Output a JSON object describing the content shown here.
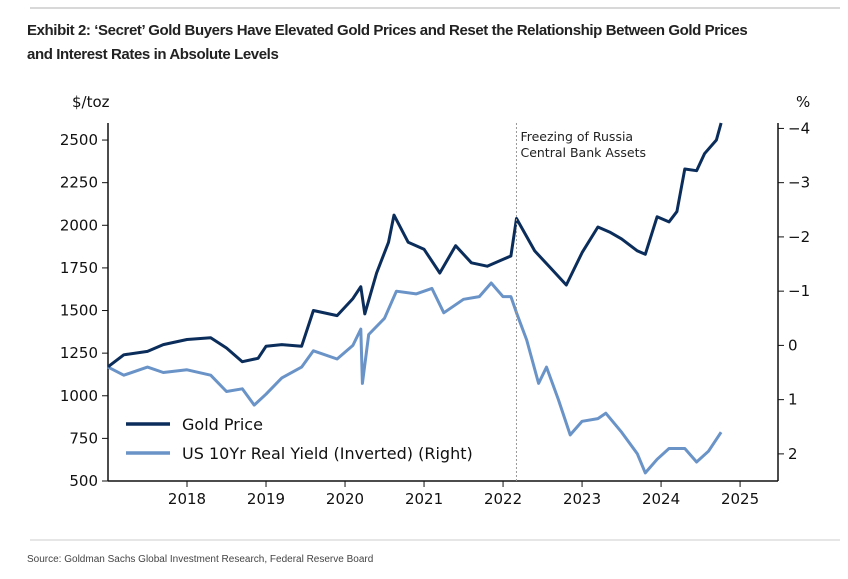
{
  "chart_data": {
    "type": "line",
    "title": "Exhibit 2: ‘Secret’ Gold Buyers Have Elevated Gold Prices and Reset the Relationship Between Gold Prices",
    "title_line2": "and Interest Rates in Absolute Levels",
    "ylabel_left": "$/toz",
    "ylabel_right": "%",
    "xlim": [
      2017.0,
      2025.48
    ],
    "ylim_left": [
      500,
      2600
    ],
    "ylim_right": [
      2.5,
      -4.1
    ],
    "right_axis_inverted": true,
    "x_ticks": [
      "2018",
      "2019",
      "2020",
      "2021",
      "2022",
      "2023",
      "2024",
      "2025"
    ],
    "y_ticks_left": [
      "500",
      "750",
      "1000",
      "1250",
      "1500",
      "1750",
      "2000",
      "2250",
      "2500"
    ],
    "y_ticks_right": [
      "−4",
      "−3",
      "−2",
      "−1",
      "0",
      "1",
      "2"
    ],
    "grid": false,
    "legend_position": "bottom-left",
    "annotation": {
      "x": 2022.17,
      "line1": "Freezing of Russia",
      "line2": "Central Bank Assets"
    },
    "series": [
      {
        "name": "Gold Price",
        "axis": "left",
        "color": "#0b2d5b",
        "x": [
          2017.0,
          2017.2,
          2017.5,
          2017.7,
          2018.0,
          2018.3,
          2018.5,
          2018.7,
          2018.9,
          2019.0,
          2019.2,
          2019.45,
          2019.6,
          2019.9,
          2020.1,
          2020.2,
          2020.25,
          2020.4,
          2020.55,
          2020.62,
          2020.8,
          2021.0,
          2021.2,
          2021.4,
          2021.6,
          2021.8,
          2022.0,
          2022.1,
          2022.17,
          2022.4,
          2022.6,
          2022.8,
          2023.0,
          2023.2,
          2023.35,
          2023.5,
          2023.7,
          2023.8,
          2023.95,
          2024.1,
          2024.2,
          2024.3,
          2024.45,
          2024.55,
          2024.7,
          2024.76
        ],
        "values": [
          1170,
          1240,
          1260,
          1300,
          1330,
          1340,
          1280,
          1200,
          1220,
          1290,
          1300,
          1290,
          1500,
          1470,
          1570,
          1640,
          1480,
          1720,
          1900,
          2060,
          1900,
          1860,
          1720,
          1880,
          1780,
          1760,
          1800,
          1820,
          2040,
          1850,
          1750,
          1650,
          1840,
          1990,
          1960,
          1920,
          1850,
          1830,
          2050,
          2020,
          2080,
          2330,
          2320,
          2420,
          2500,
          2600
        ]
      },
      {
        "name": "US 10Yr Real Yield (Inverted) (Right)",
        "axis": "right",
        "color": "#6a93c8",
        "x": [
          2017.0,
          2017.2,
          2017.5,
          2017.7,
          2018.0,
          2018.3,
          2018.5,
          2018.7,
          2018.85,
          2019.0,
          2019.2,
          2019.45,
          2019.6,
          2019.9,
          2020.1,
          2020.2,
          2020.22,
          2020.3,
          2020.5,
          2020.65,
          2020.9,
          2021.1,
          2021.25,
          2021.5,
          2021.7,
          2021.85,
          2022.0,
          2022.1,
          2022.17,
          2022.3,
          2022.45,
          2022.55,
          2022.7,
          2022.85,
          2023.0,
          2023.2,
          2023.3,
          2023.5,
          2023.7,
          2023.8,
          2023.95,
          2024.1,
          2024.3,
          2024.45,
          2024.6,
          2024.76
        ],
        "values": [
          0.4,
          0.55,
          0.4,
          0.5,
          0.45,
          0.55,
          0.85,
          0.8,
          1.1,
          0.9,
          0.6,
          0.4,
          0.1,
          0.25,
          0.0,
          -0.3,
          0.7,
          -0.2,
          -0.5,
          -1.0,
          -0.95,
          -1.05,
          -0.6,
          -0.85,
          -0.9,
          -1.15,
          -0.9,
          -0.9,
          -0.6,
          -0.1,
          0.7,
          0.4,
          1.0,
          1.65,
          1.4,
          1.35,
          1.25,
          1.6,
          2.0,
          2.35,
          2.1,
          1.9,
          1.9,
          2.15,
          1.95,
          1.6
        ]
      }
    ]
  },
  "source": "Source: Goldman Sachs Global Investment Research, Federal Reserve Board"
}
